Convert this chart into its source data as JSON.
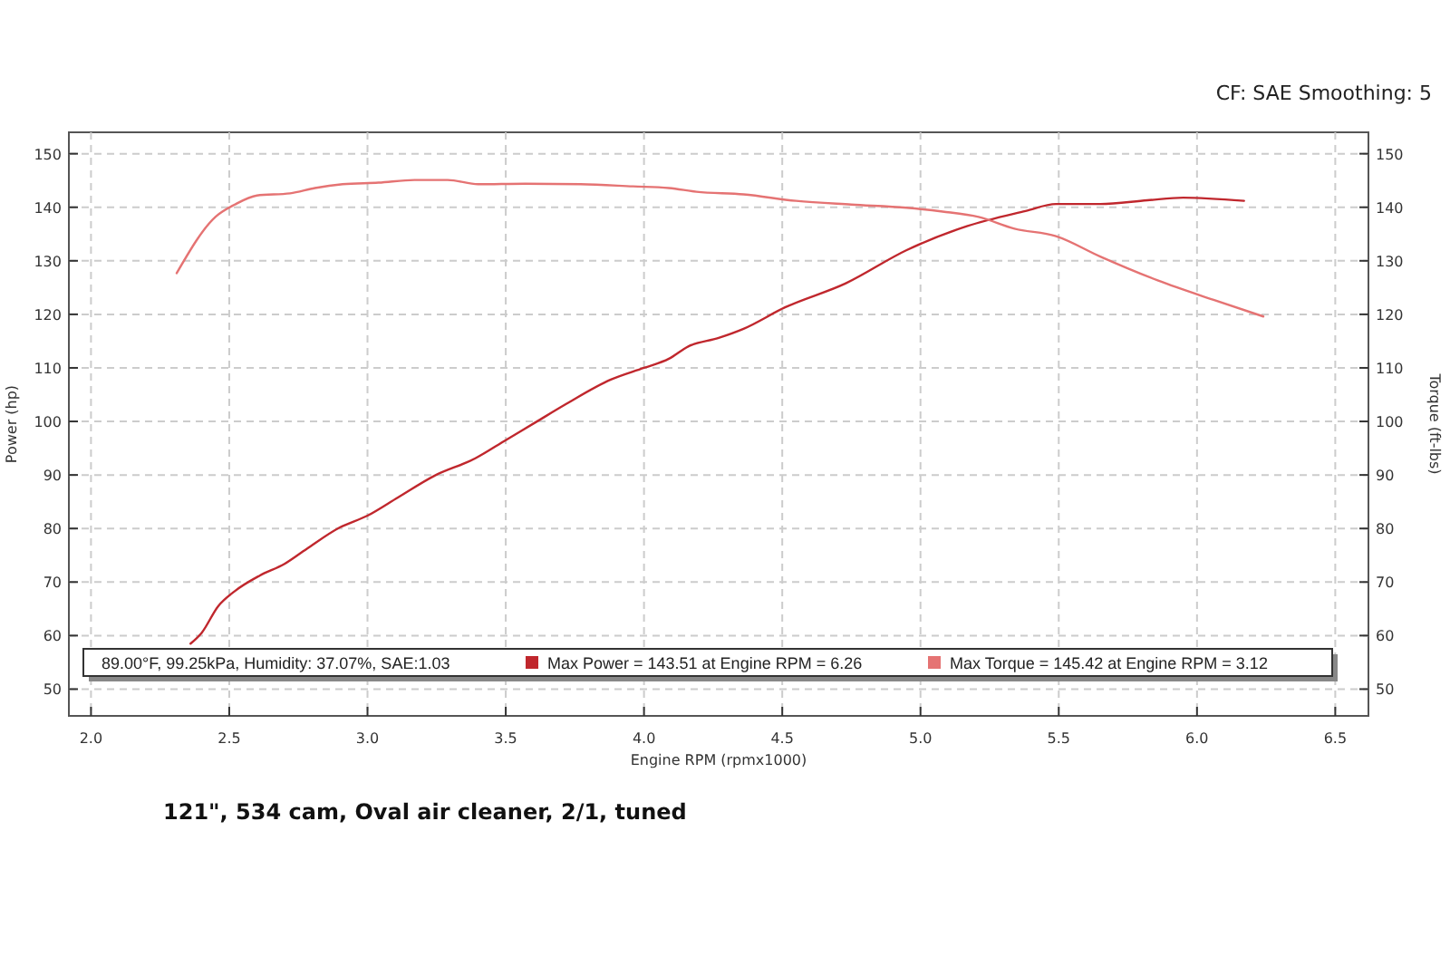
{
  "chart_data": {
    "type": "line",
    "subtitle": "CF: SAE Smoothing: 5",
    "xlabel": "Engine RPM (rpmx1000)",
    "ylabel": "Power (hp)",
    "y2label": "Torque (ft-lbs)",
    "annotations": [
      "89.00°F, 99.25kPa, Humidity: 37.07%, SAE:1.03",
      "121\", 534 cam, Oval air cleaner, 2/1, tuned"
    ],
    "xlim": [
      1.92,
      6.62
    ],
    "xticks": [
      {
        "value": 2,
        "label": "2.0"
      },
      {
        "value": 2.5,
        "label": "2.5"
      },
      {
        "value": 3,
        "label": "3.0"
      },
      {
        "value": 3.5,
        "label": "3.5"
      },
      {
        "value": 4,
        "label": "4.0"
      },
      {
        "value": 4.5,
        "label": "4.5"
      },
      {
        "value": 5,
        "label": "5.0"
      },
      {
        "value": 5.5,
        "label": "5.5"
      },
      {
        "value": 6,
        "label": "6.0"
      },
      {
        "value": 6.5,
        "label": "6.5"
      }
    ],
    "ylim": [
      45,
      154
    ],
    "yticks": [
      50,
      60,
      70,
      80,
      90,
      100,
      110,
      120,
      130,
      140,
      150
    ],
    "y2lim": [
      45,
      154
    ],
    "y2ticks": [
      50,
      60,
      70,
      80,
      90,
      100,
      110,
      120,
      130,
      140,
      150
    ],
    "grid": true,
    "legend": "bottom",
    "line_style": "solid",
    "marker": "none",
    "series": [
      {
        "name": "Max Power = 143.51 at Engine RPM = 6.26",
        "color": "#c0272d",
        "x": [
          2.36,
          2.4,
          2.46,
          2.52,
          2.61,
          2.7,
          2.78,
          2.9,
          3.0,
          3.11,
          3.24,
          3.39,
          3.5,
          3.61,
          3.72,
          3.88,
          4.0,
          4.09,
          4.16,
          4.27,
          4.36,
          4.51,
          4.73,
          4.95,
          5.17,
          5.38,
          5.49,
          5.65,
          5.82,
          5.95,
          6.17
        ],
        "values": [
          58.5,
          60.5,
          65.5,
          68.3,
          71.2,
          73.4,
          76.2,
          80.2,
          82.4,
          85.8,
          89.8,
          93.1,
          96.5,
          99.9,
          103.3,
          107.8,
          110.0,
          111.7,
          114.0,
          115.6,
          117.3,
          121.3,
          125.8,
          132.0,
          136.5,
          139.3,
          140.6,
          140.6,
          141.3,
          141.8,
          141.2
        ]
      },
      {
        "name": "Max Torque = 145.42 at Engine RPM = 3.12",
        "color": "#e57373",
        "x": [
          2.31,
          2.45,
          2.52,
          2.6,
          2.72,
          2.81,
          2.91,
          3.04,
          3.17,
          3.29,
          3.4,
          3.57,
          3.77,
          3.96,
          4.09,
          4.19,
          4.36,
          4.55,
          4.75,
          4.95,
          5.08,
          5.21,
          5.34,
          5.49,
          5.65,
          5.86,
          6.06,
          6.24
        ],
        "values": [
          127.7,
          138.2,
          140.5,
          142.2,
          142.6,
          143.6,
          144.3,
          144.6,
          145.1,
          145.1,
          144.3,
          144.4,
          144.3,
          143.9,
          143.6,
          142.9,
          142.4,
          141.2,
          140.5,
          139.9,
          139.2,
          138.2,
          136.0,
          134.6,
          130.8,
          126.3,
          122.7,
          119.6
        ]
      }
    ]
  }
}
